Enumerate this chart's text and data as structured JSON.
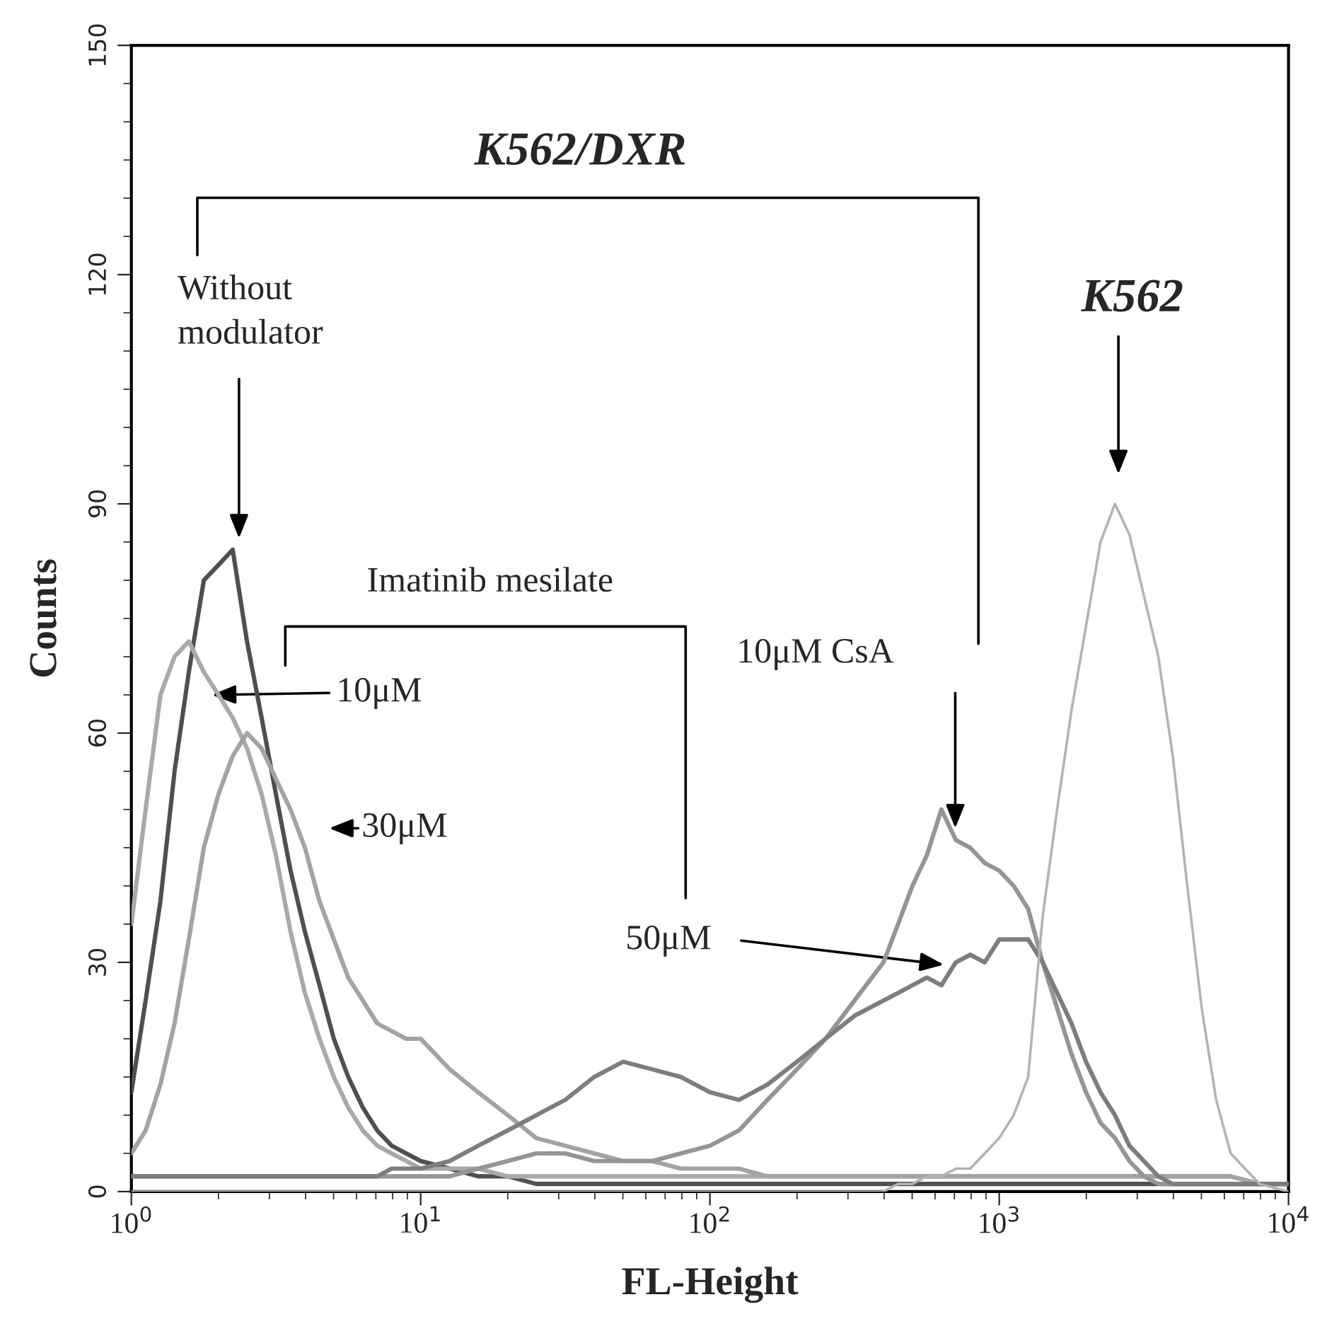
{
  "chart_data": {
    "type": "line",
    "xlabel": "FL-Height",
    "ylabel": "Counts",
    "log": "x",
    "grid": false,
    "legend": false,
    "marker": "none",
    "line_style": "solid",
    "xlim": [
      1,
      10000
    ],
    "ylim": [
      0,
      150
    ],
    "xticks": [
      {
        "value": 1,
        "label": "10$^{0}$"
      },
      {
        "value": 10,
        "label": "10$^{1}$"
      },
      {
        "value": 100,
        "label": "10$^{2}$"
      },
      {
        "value": 1000,
        "label": "10$^{3}$"
      },
      {
        "value": 10000,
        "label": "10$^{4}$"
      }
    ],
    "yticks": [
      0,
      30,
      60,
      90,
      120,
      150
    ],
    "x": [
      1,
      1.12,
      1.26,
      1.41,
      1.58,
      1.78,
      2.0,
      2.24,
      2.51,
      2.82,
      3.16,
      3.55,
      3.98,
      4.47,
      5.01,
      5.62,
      6.31,
      7.08,
      7.94,
      8.91,
      10,
      12.6,
      15.8,
      20,
      25.1,
      31.6,
      39.8,
      50.1,
      63.1,
      79.4,
      100,
      126,
      158,
      200,
      251,
      316,
      398,
      447,
      501,
      562,
      631,
      708,
      794,
      891,
      1000,
      1122,
      1259,
      1413,
      1585,
      1778,
      1995,
      2239,
      2512,
      2818,
      3162,
      3548,
      3981,
      4467,
      5012,
      5623,
      6310,
      7943,
      10000
    ],
    "series": [
      {
        "color": "#4f4f4f",
        "values": [
          13,
          25,
          38,
          55,
          68,
          80,
          82,
          84,
          72,
          62,
          52,
          42,
          34,
          27,
          20,
          15,
          11,
          8,
          6,
          5,
          4,
          3,
          2,
          2,
          1,
          1,
          1,
          1,
          1,
          1,
          1,
          1,
          1,
          1,
          1,
          1,
          1,
          1,
          1,
          1,
          1,
          1,
          1,
          1,
          1,
          1,
          1,
          1,
          1,
          1,
          1,
          1,
          1,
          1,
          1,
          1,
          1,
          1,
          1,
          1,
          1,
          1,
          1
        ]
      },
      {
        "color": "#a9a9a9",
        "values": [
          35,
          50,
          65,
          70,
          72,
          68,
          65,
          62,
          58,
          52,
          44,
          34,
          26,
          20,
          15,
          11,
          8,
          6,
          5,
          4,
          3,
          3,
          3,
          2,
          2,
          2,
          2,
          2,
          2,
          2,
          2,
          2,
          2,
          2,
          2,
          2,
          2,
          2,
          2,
          2,
          2,
          2,
          2,
          2,
          2,
          2,
          2,
          2,
          2,
          2,
          2,
          2,
          2,
          2,
          2,
          2,
          2,
          2,
          2,
          2,
          2,
          1,
          1
        ]
      },
      {
        "color": "#a3a3a3",
        "values": [
          5,
          8,
          14,
          22,
          33,
          45,
          52,
          57,
          60,
          58,
          54,
          50,
          45,
          38,
          33,
          28,
          25,
          22,
          21,
          20,
          20,
          16,
          13,
          10,
          7,
          6,
          5,
          4,
          4,
          3,
          3,
          3,
          2,
          2,
          2,
          2,
          2,
          2,
          2,
          2,
          2,
          2,
          2,
          2,
          2,
          2,
          2,
          2,
          2,
          2,
          2,
          2,
          2,
          2,
          2,
          2,
          2,
          2,
          2,
          2,
          2,
          1,
          1
        ]
      },
      {
        "color": "#959595",
        "values": [
          2,
          2,
          2,
          2,
          2,
          2,
          2,
          2,
          2,
          2,
          2,
          2,
          2,
          2,
          2,
          2,
          2,
          2,
          2,
          2,
          2,
          2,
          3,
          4,
          5,
          5,
          4,
          4,
          4,
          5,
          6,
          8,
          12,
          16,
          20,
          25,
          30,
          35,
          40,
          44,
          50,
          46,
          45,
          43,
          42,
          40,
          37,
          30,
          24,
          18,
          13,
          9,
          7,
          4,
          2,
          1,
          1,
          1,
          1,
          1,
          1,
          1,
          1
        ]
      },
      {
        "color": "#7d7d7d",
        "values": [
          2,
          2,
          2,
          2,
          2,
          2,
          2,
          2,
          2,
          2,
          2,
          2,
          2,
          2,
          2,
          2,
          2,
          2,
          3,
          3,
          3,
          4,
          6,
          8,
          10,
          12,
          15,
          17,
          16,
          15,
          13,
          12,
          14,
          17,
          20,
          23,
          25,
          26,
          27,
          28,
          27,
          30,
          31,
          30,
          33,
          33,
          33,
          30,
          26,
          22,
          17,
          13,
          10,
          6,
          4,
          2,
          1,
          1,
          1,
          1,
          1,
          1,
          1
        ]
      },
      {
        "color": "#b3b3b3",
        "values": [
          0,
          0,
          0,
          0,
          0,
          0,
          0,
          0,
          0,
          0,
          0,
          0,
          0,
          0,
          0,
          0,
          0,
          0,
          0,
          0,
          0,
          0,
          0,
          0,
          0,
          0,
          0,
          0,
          0,
          0,
          0,
          0,
          0,
          0,
          0,
          0,
          0,
          1,
          1,
          2,
          2,
          3,
          3,
          5,
          7,
          10,
          15,
          36,
          50,
          63,
          74,
          85,
          90,
          86,
          78,
          70,
          57,
          40,
          24,
          12,
          5,
          1,
          0
        ]
      }
    ],
    "annotations": [
      "K562/DXR",
      "Without\nmodulator",
      "Imatinib mesilate",
      {
        "text": "10μM",
        "x": 1.9,
        "y": 65
      },
      "30μM",
      "50μM",
      "10μM CsA",
      "K562"
    ]
  }
}
